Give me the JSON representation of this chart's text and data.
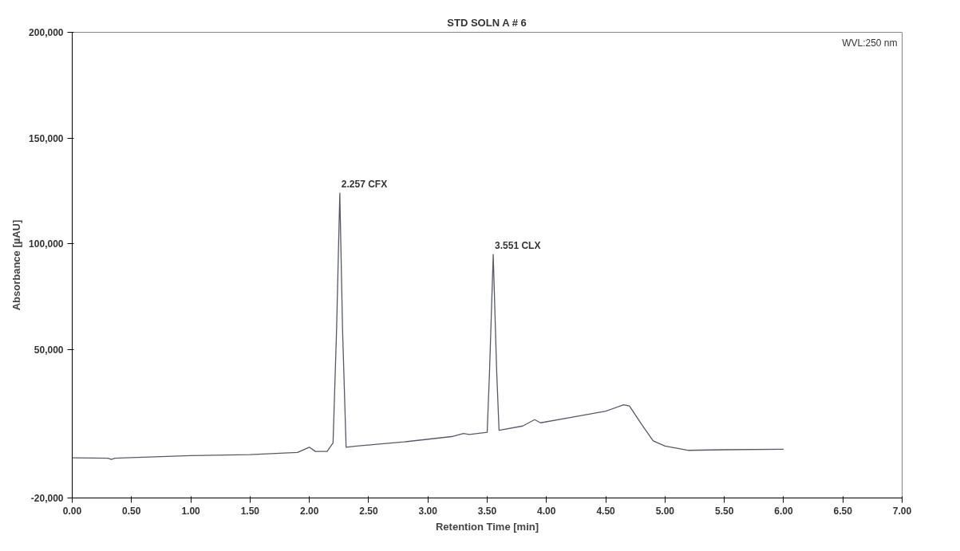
{
  "chart_data": {
    "type": "line",
    "title": "STD SOLN A # 6",
    "xlabel": "Retention Time [min]",
    "ylabel": "Absorbance [µAU]",
    "annotations": [
      {
        "text": "2.257  CFX",
        "x": 2.257,
        "y": 124000
      },
      {
        "text": "3.551  CLX",
        "x": 3.551,
        "y": 95000
      },
      "WVL:250 nm"
    ],
    "x": [
      0,
      0.3,
      0.33,
      0.36,
      0.5,
      1.0,
      1.5,
      1.9,
      2.0,
      2.05,
      2.15,
      2.2,
      2.23,
      2.257,
      2.28,
      2.31,
      2.4,
      2.8,
      3.2,
      3.3,
      3.35,
      3.5,
      3.52,
      3.551,
      3.58,
      3.6,
      3.8,
      3.9,
      3.95,
      4.2,
      4.5,
      4.65,
      4.7,
      4.8,
      4.9,
      5.0,
      5.2,
      5.5,
      6.0
    ],
    "series": [
      {
        "color": "#555a66",
        "values": [
          -1000,
          -1200,
          -1800,
          -1200,
          -900,
          0,
          500,
          1500,
          4000,
          2000,
          2000,
          6000,
          60000,
          124000,
          60000,
          4000,
          4500,
          6500,
          9000,
          10500,
          10000,
          11000,
          40000,
          95000,
          40000,
          12000,
          14000,
          17000,
          15500,
          18000,
          21000,
          24000,
          23500,
          15000,
          7000,
          4500,
          2500,
          2800,
          3000
        ]
      }
    ],
    "xlim": [
      0,
      7
    ],
    "ylim": [
      -20000,
      200000
    ],
    "xticks": [
      {
        "value": 0,
        "label": "0.00"
      },
      {
        "value": 0.5,
        "label": "0.50"
      },
      {
        "value": 1,
        "label": "1.00"
      },
      {
        "value": 1.5,
        "label": "1.50"
      },
      {
        "value": 2,
        "label": "2.00"
      },
      {
        "value": 2.5,
        "label": "2.50"
      },
      {
        "value": 3,
        "label": "3.00"
      },
      {
        "value": 3.5,
        "label": "3.50"
      },
      {
        "value": 4,
        "label": "4.00"
      },
      {
        "value": 4.5,
        "label": "4.50"
      },
      {
        "value": 5,
        "label": "5.00"
      },
      {
        "value": 5.5,
        "label": "5.50"
      },
      {
        "value": 6,
        "label": "6.00"
      },
      {
        "value": 6.5,
        "label": "6.50"
      },
      {
        "value": 7,
        "label": "7.00"
      }
    ],
    "yticks": [
      {
        "value": -20000,
        "label": "-20,000"
      },
      {
        "value": 50000,
        "label": "50,000"
      },
      {
        "value": 100000,
        "label": "100,000"
      },
      {
        "value": 150000,
        "label": "150,000"
      },
      {
        "value": 200000,
        "label": "200,000"
      }
    ],
    "grid": false,
    "line_style": "solid",
    "marker": "none"
  }
}
